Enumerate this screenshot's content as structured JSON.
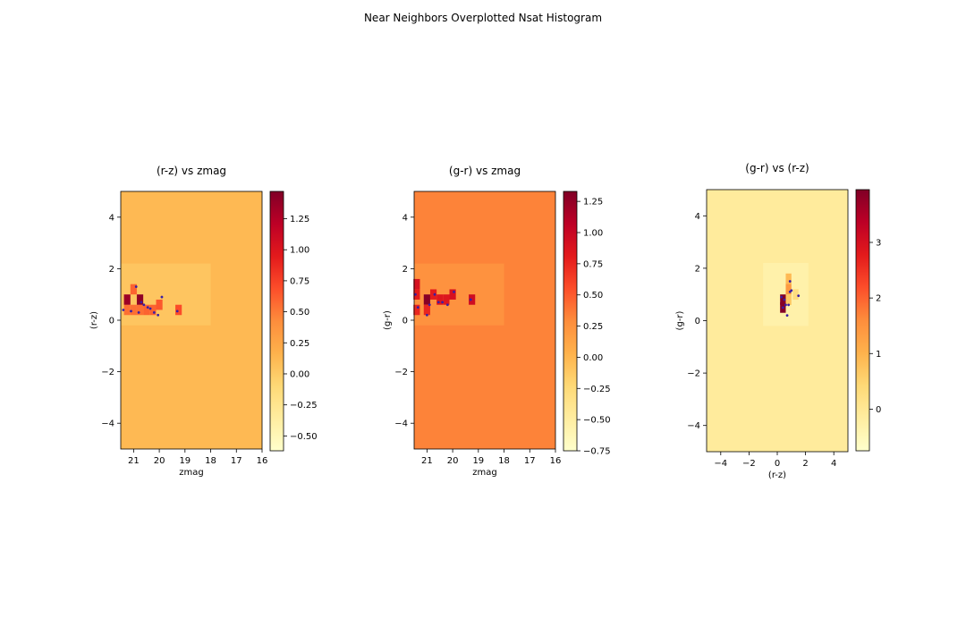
{
  "figure": {
    "suptitle": "Near Neighbors Overplotted Nsat Histogram"
  },
  "colormap": {
    "name": "YlOrRd",
    "stops": [
      "#ffffcc",
      "#ffeda0",
      "#fed976",
      "#feb24c",
      "#fd8d3c",
      "#fc4e2a",
      "#e31a1c",
      "#bd0026",
      "#800026"
    ]
  },
  "point_color": "#3b1fa3",
  "chart_data": [
    {
      "type": "heatmap",
      "title": "(r-z) vs zmag",
      "xlabel": "zmag",
      "ylabel": "(r-z)",
      "xlim": [
        21.5,
        16
      ],
      "ylim": [
        -5,
        5
      ],
      "xticks": [
        21,
        20,
        19,
        18,
        17,
        16
      ],
      "yticks": [
        -4,
        -2,
        0,
        2,
        4
      ],
      "colorbar": {
        "range": [
          -0.62,
          1.47
        ],
        "ticks": [
          -0.5,
          -0.25,
          0.0,
          0.25,
          0.5,
          0.75,
          1.0,
          1.25
        ],
        "tick_labels": [
          "−0.50",
          "−0.25",
          "0.00",
          "0.25",
          "0.50",
          "0.75",
          "1.00",
          "1.25"
        ]
      },
      "background_value": 0.12,
      "cells": [
        {
          "x": 21.25,
          "y": 0.4,
          "v": 0.55
        },
        {
          "x": 21.0,
          "y": 0.4,
          "v": 0.55
        },
        {
          "x": 20.75,
          "y": 0.4,
          "v": 0.55
        },
        {
          "x": 21.25,
          "y": 0.8,
          "v": 1.35
        },
        {
          "x": 20.75,
          "y": 0.8,
          "v": 1.4
        },
        {
          "x": 21.0,
          "y": 1.2,
          "v": 0.6
        },
        {
          "x": 20.5,
          "y": 0.4,
          "v": 0.6
        },
        {
          "x": 20.25,
          "y": 0.4,
          "v": 0.6
        },
        {
          "x": 20.0,
          "y": 0.6,
          "v": 0.65
        },
        {
          "x": 19.25,
          "y": 0.4,
          "v": 0.7
        }
      ],
      "points": [
        {
          "x": 21.4,
          "y": 0.4
        },
        {
          "x": 21.1,
          "y": 0.35
        },
        {
          "x": 20.8,
          "y": 0.3
        },
        {
          "x": 20.9,
          "y": 1.3
        },
        {
          "x": 20.6,
          "y": 0.6
        },
        {
          "x": 20.45,
          "y": 0.5
        },
        {
          "x": 20.35,
          "y": 0.45
        },
        {
          "x": 20.2,
          "y": 0.3
        },
        {
          "x": 20.05,
          "y": 0.2
        },
        {
          "x": 19.9,
          "y": 0.9
        },
        {
          "x": 19.3,
          "y": 0.35
        },
        {
          "x": 20.7,
          "y": 0.7
        }
      ]
    },
    {
      "type": "heatmap",
      "title": "(g-r) vs zmag",
      "xlabel": "zmag",
      "ylabel": "(g-r)",
      "xlim": [
        21.5,
        16
      ],
      "ylim": [
        -5,
        5
      ],
      "xticks": [
        21,
        20,
        19,
        18,
        17,
        16
      ],
      "yticks": [
        -4,
        -2,
        0,
        2,
        4
      ],
      "colorbar": {
        "range": [
          -0.75,
          1.33
        ],
        "ticks": [
          -0.75,
          -0.5,
          -0.25,
          0.0,
          0.25,
          0.5,
          0.75,
          1.0,
          1.25
        ],
        "tick_labels": [
          "−0.75",
          "−0.50",
          "−0.25",
          "0.00",
          "0.25",
          "0.50",
          "0.75",
          "1.00",
          "1.25"
        ]
      },
      "background_value": 0.33,
      "cells": [
        {
          "x": 21.4,
          "y": 1.4,
          "v": 0.9
        },
        {
          "x": 21.4,
          "y": 1.0,
          "v": 0.8
        },
        {
          "x": 21.4,
          "y": 0.4,
          "v": 0.75
        },
        {
          "x": 21.0,
          "y": 0.8,
          "v": 1.3
        },
        {
          "x": 21.0,
          "y": 0.4,
          "v": 0.75
        },
        {
          "x": 20.75,
          "y": 1.0,
          "v": 0.8
        },
        {
          "x": 20.5,
          "y": 0.8,
          "v": 0.85
        },
        {
          "x": 20.25,
          "y": 0.8,
          "v": 0.85
        },
        {
          "x": 20.0,
          "y": 1.0,
          "v": 0.9
        },
        {
          "x": 19.25,
          "y": 0.8,
          "v": 0.95
        }
      ],
      "points": [
        {
          "x": 21.45,
          "y": 1.0
        },
        {
          "x": 21.35,
          "y": 0.5
        },
        {
          "x": 21.0,
          "y": 0.2
        },
        {
          "x": 20.9,
          "y": 0.6
        },
        {
          "x": 20.7,
          "y": 1.0
        },
        {
          "x": 20.55,
          "y": 0.7
        },
        {
          "x": 20.4,
          "y": 0.7
        },
        {
          "x": 20.2,
          "y": 0.6
        },
        {
          "x": 19.95,
          "y": 1.1
        },
        {
          "x": 19.3,
          "y": 0.8
        }
      ]
    },
    {
      "type": "heatmap",
      "title": "(g-r) vs (r-z)",
      "xlabel": "(r-z)",
      "ylabel": "(g-r)",
      "xlim": [
        -5,
        5
      ],
      "ylim": [
        -5,
        5
      ],
      "xticks": [
        -4,
        -2,
        0,
        2,
        4
      ],
      "yticks": [
        -4,
        -2,
        0,
        2,
        4
      ],
      "colorbar": {
        "range": [
          -0.75,
          3.95
        ],
        "ticks": [
          0,
          1,
          2,
          3
        ],
        "tick_labels": [
          "0",
          "1",
          "2",
          "3"
        ]
      },
      "background_value": -0.1,
      "cells": [
        {
          "x": 0.8,
          "y": 1.6,
          "v": 0.9
        },
        {
          "x": 0.8,
          "y": 1.2,
          "v": 1.4
        },
        {
          "x": 0.8,
          "y": 0.8,
          "v": 0.7
        },
        {
          "x": 0.4,
          "y": 0.8,
          "v": 3.9
        },
        {
          "x": 0.4,
          "y": 0.5,
          "v": 3.9
        },
        {
          "x": 1.3,
          "y": 1.0,
          "v": 0.3
        }
      ],
      "points": [
        {
          "x": 0.3,
          "y": 0.9
        },
        {
          "x": 0.5,
          "y": 0.8
        },
        {
          "x": 0.6,
          "y": 0.6
        },
        {
          "x": 0.9,
          "y": 1.1
        },
        {
          "x": 0.8,
          "y": 0.6
        },
        {
          "x": 0.9,
          "y": 1.5
        },
        {
          "x": 0.7,
          "y": 0.2
        },
        {
          "x": 1.5,
          "y": 0.95
        },
        {
          "x": 0.4,
          "y": 0.5
        },
        {
          "x": 1.0,
          "y": 1.15
        }
      ]
    }
  ]
}
